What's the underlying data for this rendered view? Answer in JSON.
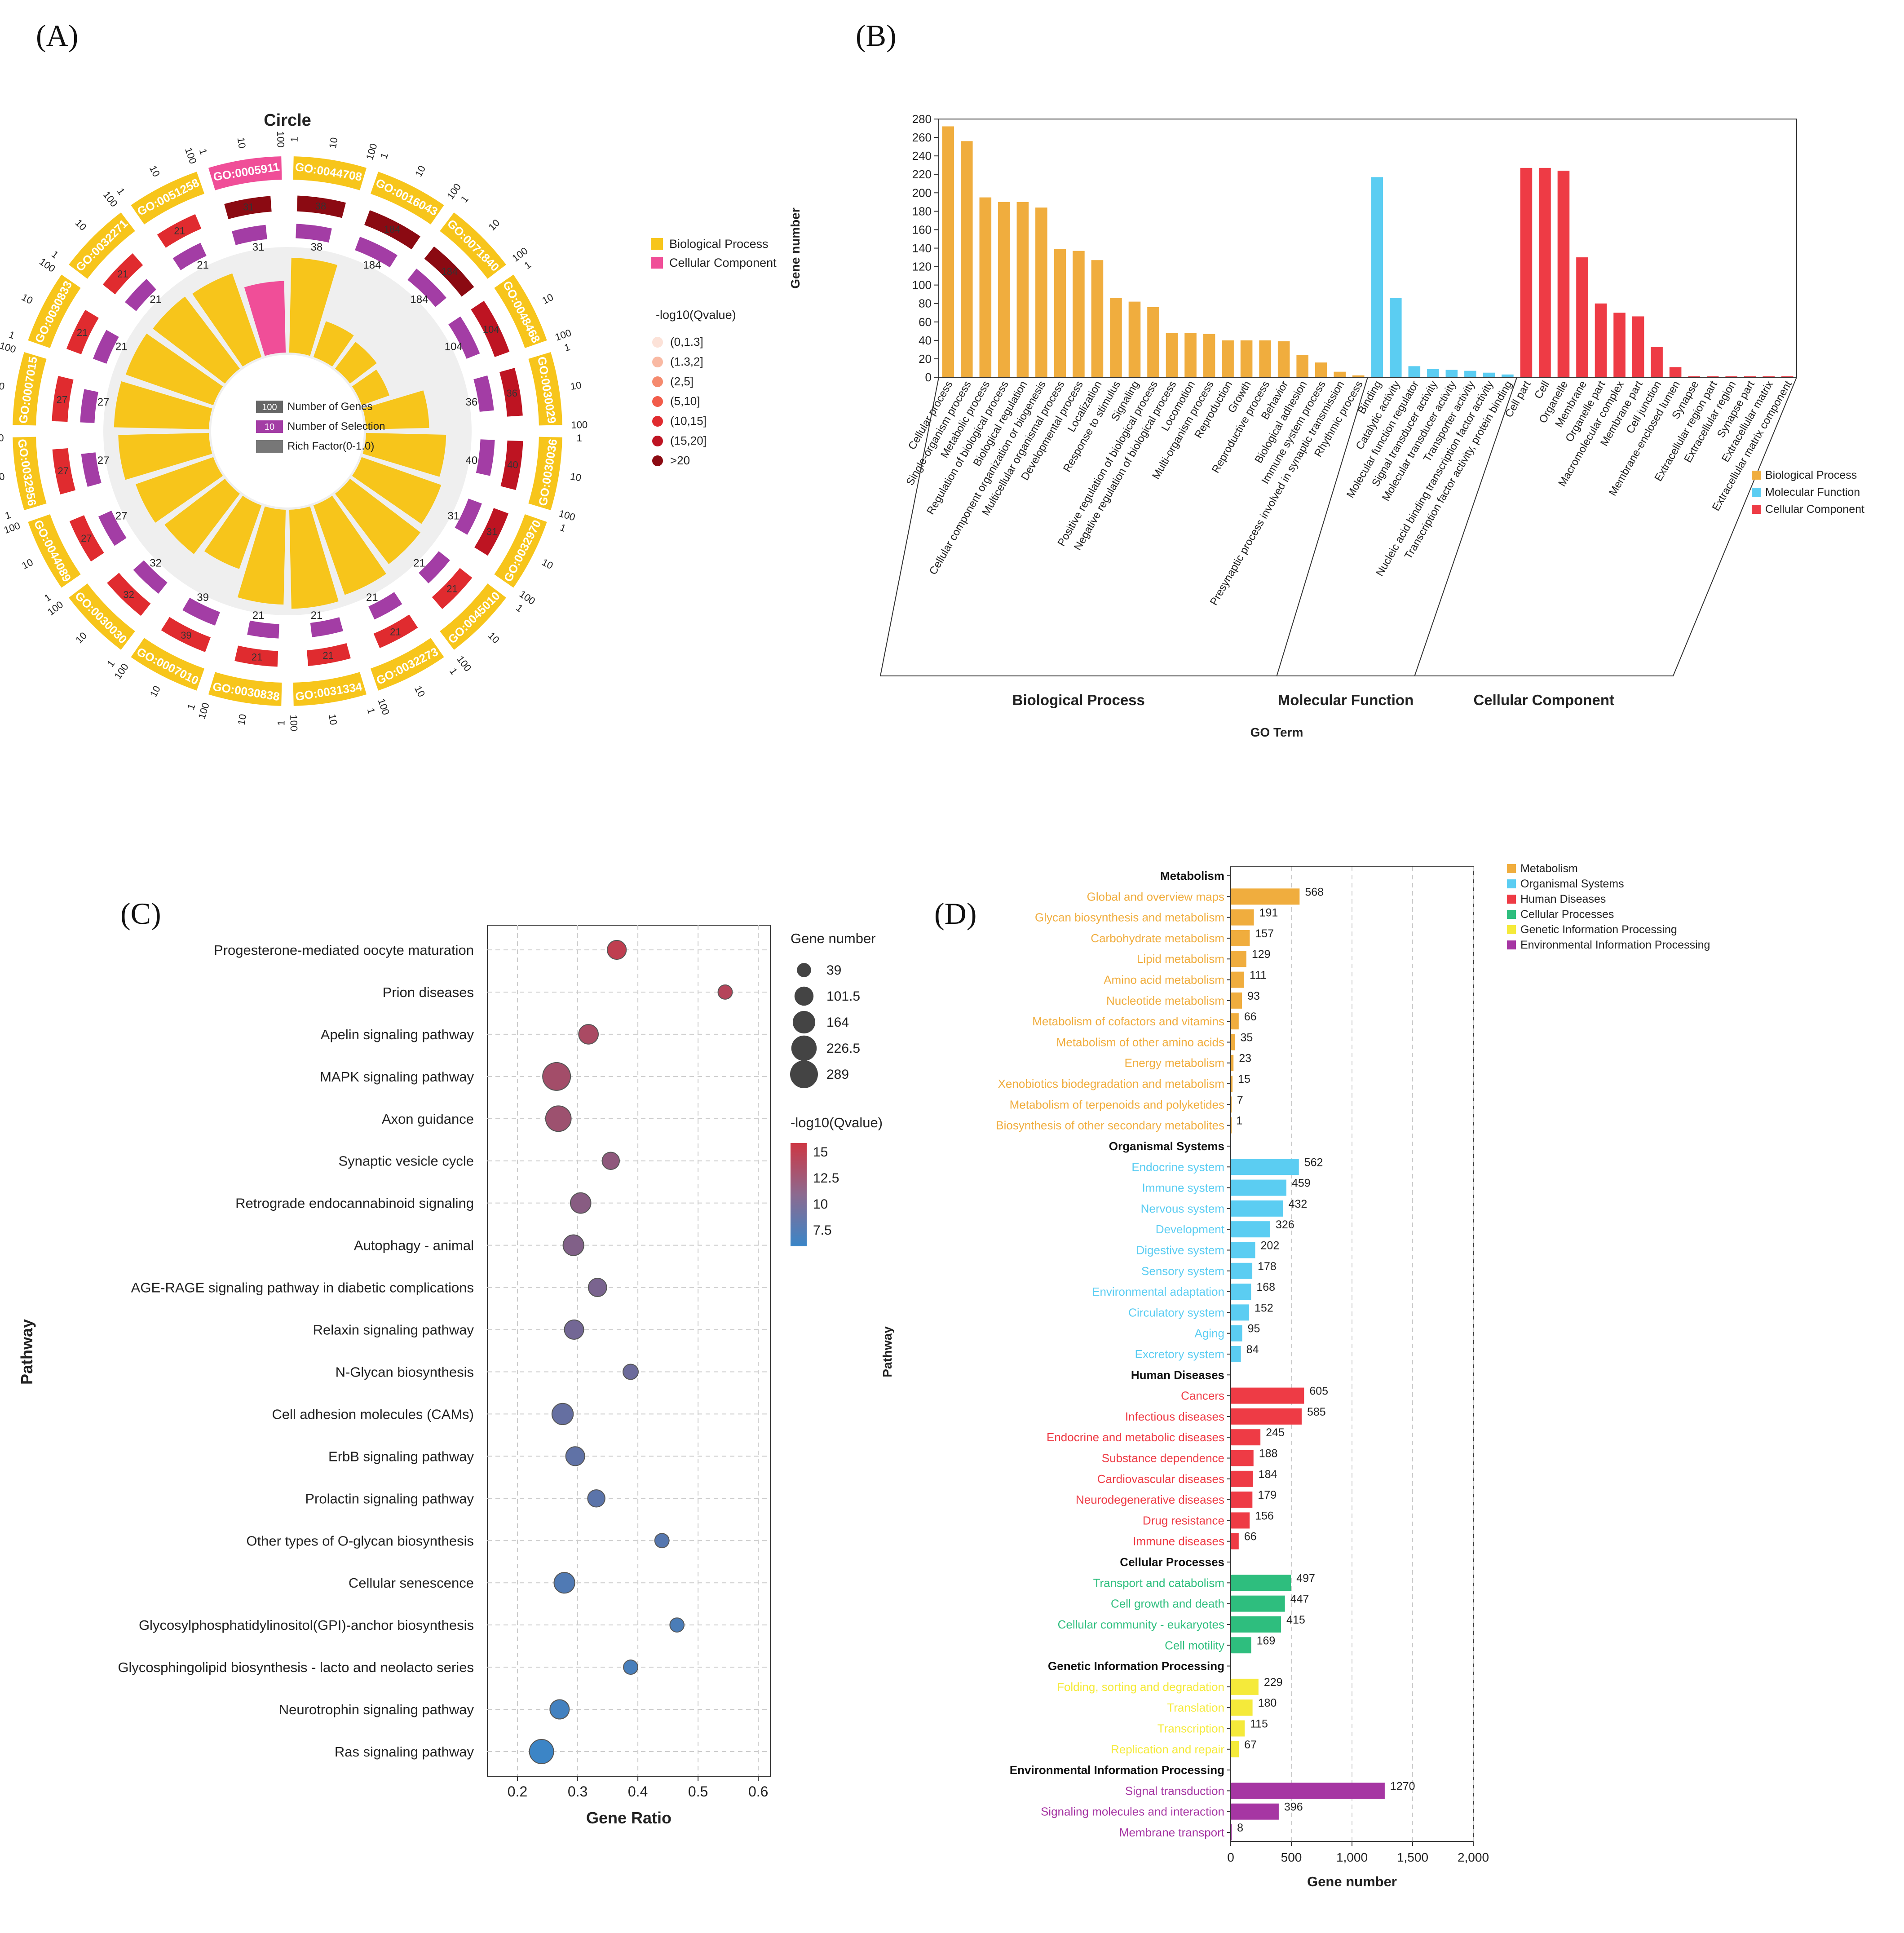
{
  "colors": {
    "bp": "#F0AD3E",
    "mf": "#5BCDF2",
    "cc": "#EE3B45",
    "gold": "#F7C51B",
    "pink": "#F04E98",
    "purple": "#A33DA5",
    "org": "#5BCDF2",
    "hum": "#EE3B45",
    "cell": "#2EBE7E",
    "gen": "#F5EA3A",
    "env": "#A636A3"
  },
  "panels": {
    "a": "(A)",
    "b": "(B)",
    "c": "(C)",
    "d": "(D)"
  },
  "chart_data": [
    {
      "id": "A",
      "type": "circular-bar",
      "title": "Circle",
      "legend": {
        "categories": [
          "Biological Process",
          "Cellular Component"
        ],
        "qtitle": "-log10(Qvalue)",
        "qbins": [
          "(0,1.3]",
          "(1.3,2]",
          "(2,5]",
          "(5,10]",
          "(10,15]",
          "(15,20]",
          ">20"
        ],
        "qcolors": [
          "#FCE2D8",
          "#F9B9A3",
          "#F58A6E",
          "#F25C4A",
          "#E02B2F",
          "#BE1422",
          "#8B0A12"
        ]
      },
      "center_legend": [
        {
          "box": "100",
          "label": "Number of Genes"
        },
        {
          "box": "10",
          "label": "Number of Selection"
        },
        {
          "box": "",
          "label": "Rich Factor(0-1.0)"
        }
      ],
      "scale_ticks": [
        "1",
        "10",
        "100"
      ],
      "terms": [
        {
          "id": "GO:0044708",
          "cat": "BP",
          "genes": "38",
          "sel": "38",
          "rich": 0.92,
          "q": 6
        },
        {
          "id": "GO:0016043",
          "cat": "BP",
          "genes": "184",
          "sel": "184",
          "rich": 0.38,
          "q": 6
        },
        {
          "id": "GO:0071840",
          "cat": "BP",
          "genes": "184",
          "sel": "184",
          "rich": 0.34,
          "q": 6
        },
        {
          "id": "GO:0048468",
          "cat": "BP",
          "genes": "104",
          "sel": "104",
          "rich": 0.3,
          "q": 5
        },
        {
          "id": "GO:0030029",
          "cat": "BP",
          "genes": "36",
          "sel": "36",
          "rich": 0.62,
          "q": 5
        },
        {
          "id": "GO:0030036",
          "cat": "BP",
          "genes": "40",
          "sel": "40",
          "rich": 0.78,
          "q": 5
        },
        {
          "id": "GO:0032970",
          "cat": "BP",
          "genes": "31",
          "sel": "31",
          "rich": 0.82,
          "q": 5
        },
        {
          "id": "GO:0045010",
          "cat": "BP",
          "genes": "21",
          "sel": "21",
          "rich": 0.86,
          "q": 4
        },
        {
          "id": "GO:0032273",
          "cat": "BP",
          "genes": "21",
          "sel": "21",
          "rich": 0.92,
          "q": 4
        },
        {
          "id": "GO:0031334",
          "cat": "BP",
          "genes": "21",
          "sel": "21",
          "rich": 0.96,
          "q": 4
        },
        {
          "id": "GO:0030838",
          "cat": "BP",
          "genes": "21",
          "sel": "21",
          "rich": 0.92,
          "q": 4
        },
        {
          "id": "GO:0007010",
          "cat": "BP",
          "genes": "39",
          "sel": "39",
          "rich": 0.66,
          "q": 4
        },
        {
          "id": "GO:0030030",
          "cat": "BP",
          "genes": "32",
          "sel": "32",
          "rich": 0.74,
          "q": 4
        },
        {
          "id": "GO:0044089",
          "cat": "BP",
          "genes": "27",
          "sel": "27",
          "rich": 0.8,
          "q": 4
        },
        {
          "id": "GO:0032956",
          "cat": "BP",
          "genes": "27",
          "sel": "27",
          "rich": 0.88,
          "q": 4
        },
        {
          "id": "GO:0007015",
          "cat": "BP",
          "genes": "27",
          "sel": "27",
          "rich": 0.92,
          "q": 4
        },
        {
          "id": "GO:0030833",
          "cat": "BP",
          "genes": "21",
          "sel": "21",
          "rich": 0.9,
          "q": 4
        },
        {
          "id": "GO:0032271",
          "cat": "BP",
          "genes": "21",
          "sel": "21",
          "rich": 0.88,
          "q": 4
        },
        {
          "id": "GO:0051258",
          "cat": "BP",
          "genes": "21",
          "sel": "21",
          "rich": 0.86,
          "q": 4
        },
        {
          "id": "GO:0005911",
          "cat": "CC",
          "genes": "31",
          "sel": "31",
          "rich": 0.7,
          "q": 6
        }
      ]
    },
    {
      "id": "B",
      "type": "bar",
      "ylabel": "Gene number",
      "xlabel": "GO Term",
      "ylim": [
        0,
        280
      ],
      "yticks": [
        0,
        20,
        40,
        60,
        80,
        100,
        120,
        140,
        160,
        180,
        200,
        220,
        240,
        260,
        280
      ],
      "groups": [
        "Biological Process",
        "Molecular Function",
        "Cellular Component"
      ],
      "legend": [
        "Biological Process",
        "Molecular Function",
        "Cellular Component"
      ],
      "bars": [
        {
          "label": "Cellular process",
          "value": 272,
          "g": 0
        },
        {
          "label": "Single-organism process",
          "value": 256,
          "g": 0
        },
        {
          "label": "Metabolic process",
          "value": 195,
          "g": 0
        },
        {
          "label": "Regulation of biological process",
          "value": 190,
          "g": 0
        },
        {
          "label": "Biological regulation",
          "value": 190,
          "g": 0
        },
        {
          "label": "Cellular component organization or biogenesis",
          "value": 184,
          "g": 0
        },
        {
          "label": "Multicellular organismal process",
          "value": 139,
          "g": 0
        },
        {
          "label": "Developmental process",
          "value": 137,
          "g": 0
        },
        {
          "label": "Localization",
          "value": 127,
          "g": 0
        },
        {
          "label": "Response to stimulus",
          "value": 86,
          "g": 0
        },
        {
          "label": "Signaling",
          "value": 82,
          "g": 0
        },
        {
          "label": "Positive regulation of biological process",
          "value": 76,
          "g": 0
        },
        {
          "label": "Negative regulation of biological process",
          "value": 48,
          "g": 0
        },
        {
          "label": "Locomotion",
          "value": 48,
          "g": 0
        },
        {
          "label": "Multi-organism process",
          "value": 47,
          "g": 0
        },
        {
          "label": "Reproduction",
          "value": 40,
          "g": 0
        },
        {
          "label": "Growth",
          "value": 40,
          "g": 0
        },
        {
          "label": "Reproductive process",
          "value": 40,
          "g": 0
        },
        {
          "label": "Behavior",
          "value": 39,
          "g": 0
        },
        {
          "label": "Biological adhesion",
          "value": 24,
          "g": 0
        },
        {
          "label": "Immune system process",
          "value": 16,
          "g": 0
        },
        {
          "label": "Presynaptic process involved in synaptic transmission",
          "value": 6,
          "g": 0
        },
        {
          "label": "Rhythmic process",
          "value": 2,
          "g": 0
        },
        {
          "label": "Binding",
          "value": 217,
          "g": 1
        },
        {
          "label": "Catalytic activity",
          "value": 86,
          "g": 1
        },
        {
          "label": "Molecular function regulator",
          "value": 12,
          "g": 1
        },
        {
          "label": "Signal transducer activity",
          "value": 9,
          "g": 1
        },
        {
          "label": "Molecular transducer activity",
          "value": 8,
          "g": 1
        },
        {
          "label": "Transporter activity",
          "value": 7,
          "g": 1
        },
        {
          "label": "Nucleic acid binding transcription factor activity",
          "value": 5,
          "g": 1
        },
        {
          "label": "Transcription factor activity, protein binding",
          "value": 3,
          "g": 1
        },
        {
          "label": "Cell part",
          "value": 227,
          "g": 2
        },
        {
          "label": "Cell",
          "value": 227,
          "g": 2
        },
        {
          "label": "Organelle",
          "value": 224,
          "g": 2
        },
        {
          "label": "Membrane",
          "value": 130,
          "g": 2
        },
        {
          "label": "Organelle part",
          "value": 80,
          "g": 2
        },
        {
          "label": "Macromolecular complex",
          "value": 70,
          "g": 2
        },
        {
          "label": "Membrane part",
          "value": 66,
          "g": 2
        },
        {
          "label": "Cell junction",
          "value": 33,
          "g": 2
        },
        {
          "label": "Membrane-enclosed lumen",
          "value": 11,
          "g": 2
        },
        {
          "label": "Synapse",
          "value": 1,
          "g": 2
        },
        {
          "label": "Extracellular region part",
          "value": 1,
          "g": 2
        },
        {
          "label": "Extracellular region",
          "value": 1,
          "g": 2
        },
        {
          "label": "Synapse part",
          "value": 1,
          "g": 2
        },
        {
          "label": "Extracellular matrix",
          "value": 1,
          "g": 2
        },
        {
          "label": "Extracellular matrix component",
          "value": 1,
          "g": 2
        }
      ]
    },
    {
      "id": "C",
      "type": "scatter",
      "xlabel": "Gene Ratio",
      "ylabel": "Pathway",
      "xlim": [
        0.15,
        0.62
      ],
      "xticks": [
        "0.2",
        "0.3",
        "0.4",
        "0.5",
        "0.6"
      ],
      "size_title": "Gene number",
      "size_values": [
        "39",
        "101.5",
        "164",
        "226.5",
        "289"
      ],
      "color_title": "-log10(Qvalue)",
      "color_ticks": [
        "15",
        "12.5",
        "10",
        "7.5"
      ],
      "points": [
        {
          "name": "Progesterone-mediated oocyte maturation",
          "ratio": 0.365,
          "genes": 100,
          "q": 14.2
        },
        {
          "name": "Prion diseases",
          "ratio": 0.545,
          "genes": 40,
          "q": 13.6
        },
        {
          "name": "Apelin signaling pathway",
          "ratio": 0.318,
          "genes": 110,
          "q": 13.0
        },
        {
          "name": "MAPK signaling pathway",
          "ratio": 0.265,
          "genes": 289,
          "q": 12.6
        },
        {
          "name": "Axon guidance",
          "ratio": 0.268,
          "genes": 230,
          "q": 12.2
        },
        {
          "name": "Synaptic vesicle cycle",
          "ratio": 0.355,
          "genes": 75,
          "q": 11.4
        },
        {
          "name": "Retrograde endocannabinoid signaling",
          "ratio": 0.305,
          "genes": 125,
          "q": 11.0
        },
        {
          "name": "Autophagy - animal",
          "ratio": 0.293,
          "genes": 130,
          "q": 10.6
        },
        {
          "name": "AGE-RAGE signaling pathway in diabetic complications",
          "ratio": 0.333,
          "genes": 90,
          "q": 10.2
        },
        {
          "name": "Relaxin signaling pathway",
          "ratio": 0.294,
          "genes": 105,
          "q": 9.8
        },
        {
          "name": "N-Glycan biosynthesis",
          "ratio": 0.388,
          "genes": 50,
          "q": 9.4
        },
        {
          "name": "Cell adhesion molecules (CAMs)",
          "ratio": 0.275,
          "genes": 140,
          "q": 9.0
        },
        {
          "name": "ErbB signaling pathway",
          "ratio": 0.296,
          "genes": 100,
          "q": 8.7
        },
        {
          "name": "Prolactin signaling pathway",
          "ratio": 0.331,
          "genes": 75,
          "q": 8.4
        },
        {
          "name": "Other types of O-glycan biosynthesis",
          "ratio": 0.44,
          "genes": 40,
          "q": 8.1
        },
        {
          "name": "Cellular senescence",
          "ratio": 0.278,
          "genes": 130,
          "q": 7.8
        },
        {
          "name": "Glycosylphosphatidylinositol(GPI)-anchor biosynthesis",
          "ratio": 0.465,
          "genes": 39,
          "q": 7.5
        },
        {
          "name": "Glycosphingolipid biosynthesis - lacto and neolacto series",
          "ratio": 0.388,
          "genes": 40,
          "q": 7.3
        },
        {
          "name": "Neurotrophin signaling pathway",
          "ratio": 0.27,
          "genes": 105,
          "q": 7.0
        },
        {
          "name": "Ras signaling pathway",
          "ratio": 0.24,
          "genes": 200,
          "q": 6.6
        }
      ]
    },
    {
      "id": "D",
      "type": "bar-horizontal",
      "xlabel": "Gene number",
      "ylabel": "Pathway",
      "xlim": [
        0,
        2000
      ],
      "xticks": [
        "0",
        "500",
        "1,000",
        "1,500",
        "2,000"
      ],
      "legend": [
        "Metabolism",
        "Organismal Systems",
        "Human Diseases",
        "Cellular Processes",
        "Genetic Information Processing",
        "Environmental Information Processing"
      ],
      "rows": [
        {
          "label": "Metabolism",
          "header": true
        },
        {
          "label": "Global and overview maps",
          "value": 568,
          "c": "bp"
        },
        {
          "label": "Glycan biosynthesis and metabolism",
          "value": 191,
          "c": "bp"
        },
        {
          "label": "Carbohydrate metabolism",
          "value": 157,
          "c": "bp"
        },
        {
          "label": "Lipid metabolism",
          "value": 129,
          "c": "bp"
        },
        {
          "label": "Amino acid metabolism",
          "value": 111,
          "c": "bp"
        },
        {
          "label": "Nucleotide metabolism",
          "value": 93,
          "c": "bp"
        },
        {
          "label": "Metabolism of cofactors and vitamins",
          "value": 66,
          "c": "bp"
        },
        {
          "label": "Metabolism of other amino acids",
          "value": 35,
          "c": "bp"
        },
        {
          "label": "Energy metabolism",
          "value": 23,
          "c": "bp"
        },
        {
          "label": "Xenobiotics biodegradation and metabolism",
          "value": 15,
          "c": "bp"
        },
        {
          "label": "Metabolism of terpenoids and polyketides",
          "value": 7,
          "c": "bp"
        },
        {
          "label": "Biosynthesis of other secondary metabolites",
          "value": 1,
          "c": "bp"
        },
        {
          "label": "Organismal Systems",
          "header": true
        },
        {
          "label": "Endocrine system",
          "value": 562,
          "c": "org"
        },
        {
          "label": "Immune system",
          "value": 459,
          "c": "org"
        },
        {
          "label": "Nervous system",
          "value": 432,
          "c": "org"
        },
        {
          "label": "Development",
          "value": 326,
          "c": "org"
        },
        {
          "label": "Digestive system",
          "value": 202,
          "c": "org"
        },
        {
          "label": "Sensory system",
          "value": 178,
          "c": "org"
        },
        {
          "label": "Environmental adaptation",
          "value": 168,
          "c": "org"
        },
        {
          "label": "Circulatory system",
          "value": 152,
          "c": "org"
        },
        {
          "label": "Aging",
          "value": 95,
          "c": "org"
        },
        {
          "label": "Excretory system",
          "value": 84,
          "c": "org"
        },
        {
          "label": "Human Diseases",
          "header": true
        },
        {
          "label": "Cancers",
          "value": 605,
          "c": "hum"
        },
        {
          "label": "Infectious diseases",
          "value": 585,
          "c": "hum"
        },
        {
          "label": "Endocrine and metabolic diseases",
          "value": 245,
          "c": "hum"
        },
        {
          "label": "Substance dependence",
          "value": 188,
          "c": "hum"
        },
        {
          "label": "Cardiovascular diseases",
          "value": 184,
          "c": "hum"
        },
        {
          "label": "Neurodegenerative diseases",
          "value": 179,
          "c": "hum"
        },
        {
          "label": "Drug resistance",
          "value": 156,
          "c": "hum"
        },
        {
          "label": "Immune diseases",
          "value": 66,
          "c": "hum"
        },
        {
          "label": "Cellular Processes",
          "header": true
        },
        {
          "label": "Transport and catabolism",
          "value": 497,
          "c": "cell"
        },
        {
          "label": "Cell growth and death",
          "value": 447,
          "c": "cell"
        },
        {
          "label": "Cellular community - eukaryotes",
          "value": 415,
          "c": "cell"
        },
        {
          "label": "Cell motility",
          "value": 169,
          "c": "cell"
        },
        {
          "label": "Genetic Information Processing",
          "header": true
        },
        {
          "label": "Folding, sorting and degradation",
          "value": 229,
          "c": "gen"
        },
        {
          "label": "Translation",
          "value": 180,
          "c": "gen"
        },
        {
          "label": "Transcription",
          "value": 115,
          "c": "gen"
        },
        {
          "label": "Replication and repair",
          "value": 67,
          "c": "gen"
        },
        {
          "label": "Environmental Information Processing",
          "header": true
        },
        {
          "label": "Signal transduction",
          "value": 1270,
          "c": "env"
        },
        {
          "label": "Signaling molecules and interaction",
          "value": 396,
          "c": "env"
        },
        {
          "label": "Membrane transport",
          "value": 8,
          "c": "env"
        }
      ]
    }
  ]
}
